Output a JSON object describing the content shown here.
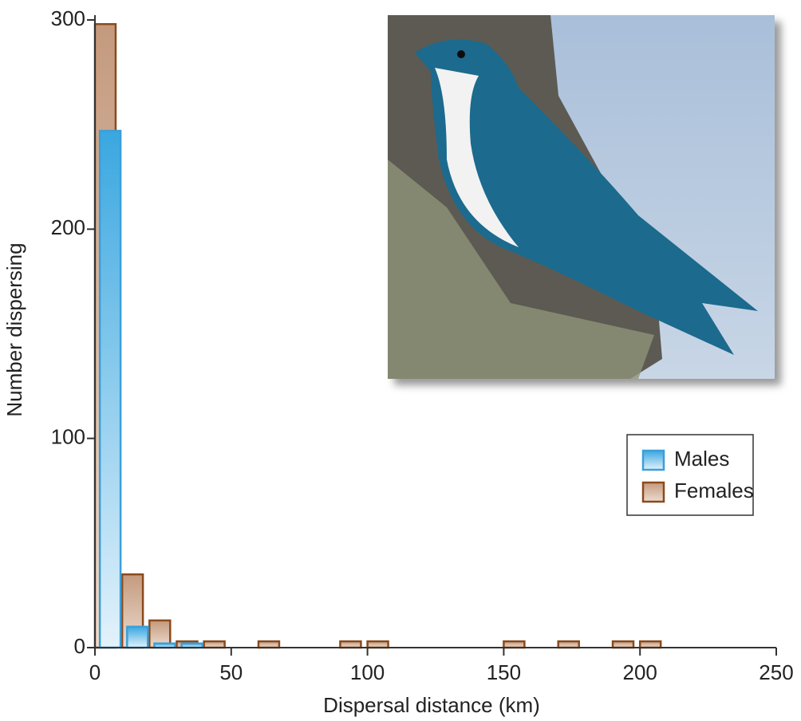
{
  "chart_data": {
    "type": "histogram",
    "xlabel": "Dispersal distance (km)",
    "ylabel": "Number dispersing",
    "bins": [
      0,
      10,
      20,
      30,
      40,
      50,
      60,
      70,
      80,
      90,
      100,
      110,
      120,
      130,
      140,
      150,
      160,
      170,
      180,
      190,
      200,
      210
    ],
    "series": [
      {
        "name": "Males",
        "color": "#3a9fd9",
        "values": [
          247,
          10,
          2,
          2,
          0,
          0,
          0,
          0,
          0,
          0,
          0,
          0,
          0,
          0,
          0,
          0,
          0,
          0,
          0,
          0,
          0
        ]
      },
      {
        "name": "Females",
        "color": "#8b4a1c",
        "values": [
          298,
          35,
          13,
          3,
          3,
          0,
          3,
          0,
          0,
          3,
          3,
          0,
          0,
          0,
          0,
          3,
          0,
          3,
          0,
          3,
          3
        ]
      }
    ],
    "xlim": [
      0,
      250
    ],
    "xticks": [
      0,
      50,
      100,
      150,
      200,
      250
    ],
    "ylim": [
      0,
      300
    ],
    "yticks": [
      0,
      100,
      200,
      300
    ],
    "legend": "right"
  }
}
